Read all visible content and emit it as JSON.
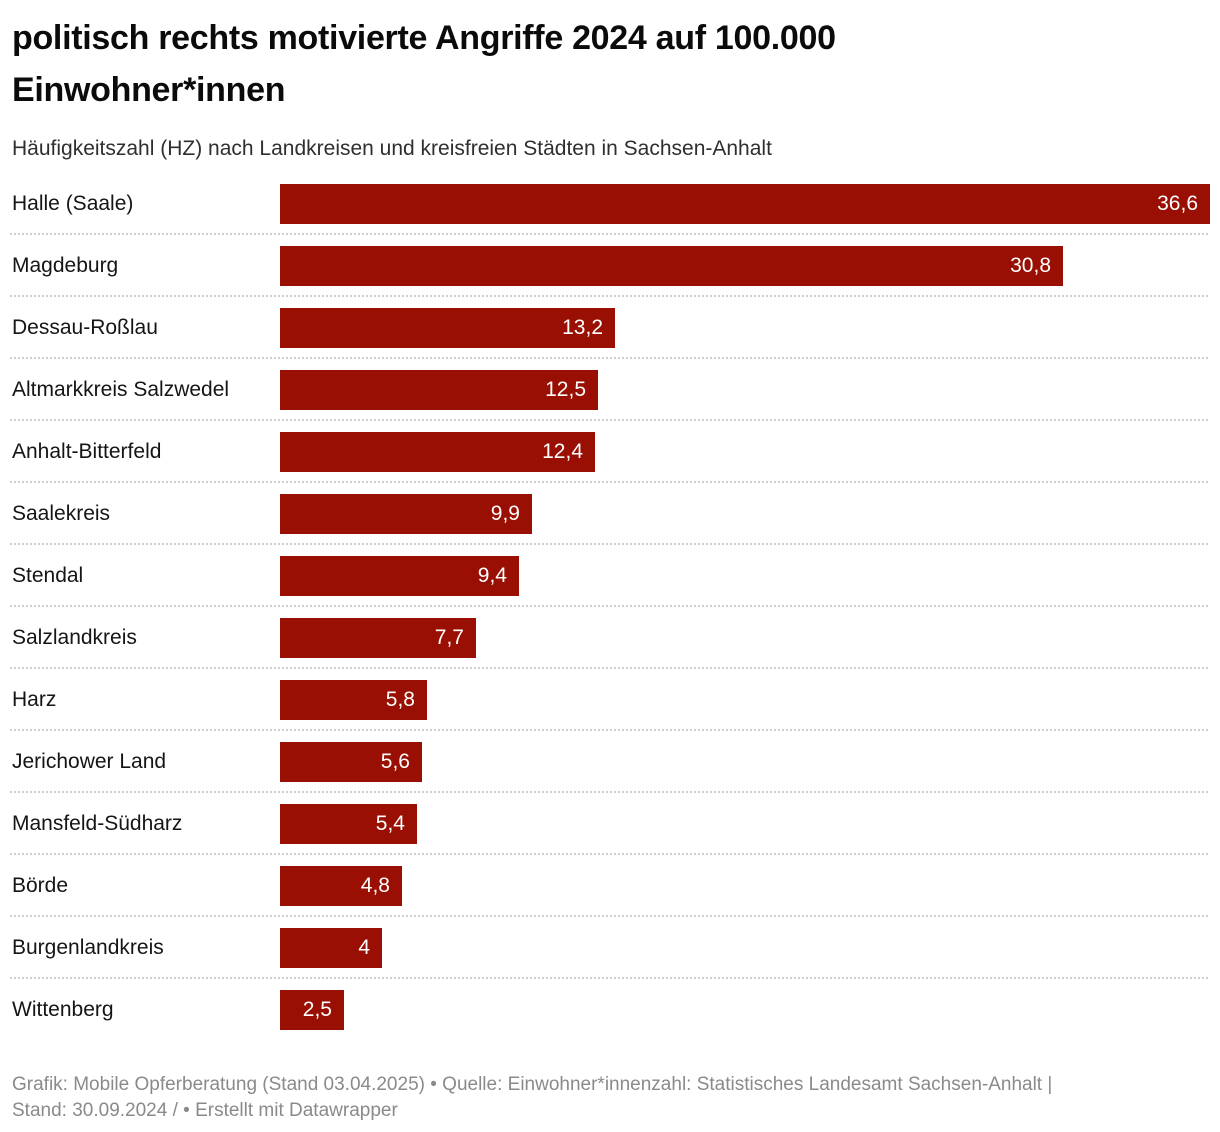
{
  "title": "politisch rechts motivierte Angriffe 2024 auf 100.000 Einwohner*innen",
  "subtitle": "Häufigkeitszahl (HZ) nach Landkreisen und kreisfreien Städten in Sachsen-Anhalt",
  "footer": {
    "line1": "Grafik: Mobile Opferberatung (Stand 03.04.2025) • Quelle: Einwohner*innenzahl: Statistisches Landesamt Sachsen-Anhalt |",
    "line2": "Stand: 30.09.2024 / • Erstellt mit Datawrapper"
  },
  "colors": {
    "bar": "#990F04",
    "value_label": "#ffffff",
    "category_label": "#151515",
    "footer_text": "#8a8a8a",
    "separator": "#cfcfcf"
  },
  "chart_data": {
    "type": "bar",
    "orientation": "horizontal",
    "title": "politisch rechts motivierte Angriffe 2024 auf 100.000 Einwohner*innen",
    "subtitle": "Häufigkeitszahl (HZ) nach Landkreisen und kreisfreien Städten in Sachsen-Anhalt",
    "xlabel": "",
    "ylabel": "",
    "xlim": [
      0,
      36.6
    ],
    "grid": false,
    "legend": false,
    "value_labels_position": "inside-end",
    "categories": [
      "Halle (Saale)",
      "Magdeburg",
      "Dessau-Roßlau",
      "Altmarkkreis Salzwedel",
      "Anhalt-Bitterfeld",
      "Saalekreis",
      "Stendal",
      "Salzlandkreis",
      "Harz",
      "Jerichower Land",
      "Mansfeld-Südharz",
      "Börde",
      "Burgenlandkreis",
      "Wittenberg"
    ],
    "values": [
      36.6,
      30.8,
      13.2,
      12.5,
      12.4,
      9.9,
      9.4,
      7.7,
      5.8,
      5.6,
      5.4,
      4.8,
      4,
      2.5
    ],
    "value_labels": [
      "36,6",
      "30,8",
      "13,2",
      "12,5",
      "12,4",
      "9,9",
      "9,4",
      "7,7",
      "5,8",
      "5,6",
      "5,4",
      "4,8",
      "4",
      "2,5"
    ]
  }
}
